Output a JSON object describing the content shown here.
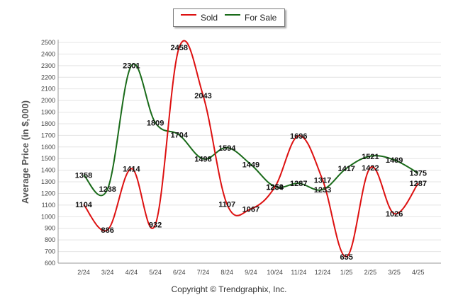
{
  "chart_data": {
    "type": "line",
    "ylabel": "Average Price (in $,000)",
    "ylim": [
      600,
      2500
    ],
    "yticks": [
      600,
      700,
      800,
      900,
      1000,
      1100,
      1200,
      1300,
      1400,
      1500,
      1600,
      1700,
      1800,
      1900,
      2000,
      2100,
      2200,
      2300,
      2400,
      2500
    ],
    "categories": [
      "2/24",
      "3/24",
      "4/24",
      "5/24",
      "6/24",
      "7/24",
      "8/24",
      "9/24",
      "10/24",
      "11/24",
      "12/24",
      "1/25",
      "2/25",
      "3/25",
      "4/25"
    ],
    "legend_position": "top-center",
    "grid": true,
    "series": [
      {
        "name": "Sold",
        "color": "#dd1111",
        "values": [
          1104,
          886,
          1414,
          932,
          2458,
          2043,
          1107,
          1067,
          1254,
          1696,
          1317,
          655,
          1422,
          1026,
          1287
        ]
      },
      {
        "name": "For Sale",
        "color": "#1a6b1a",
        "values": [
          1358,
          1238,
          2301,
          1809,
          1704,
          1498,
          1594,
          1449,
          1259,
          1287,
          1233,
          1417,
          1521,
          1489,
          1375
        ]
      }
    ]
  },
  "legend": {
    "sold_label": "Sold",
    "for_sale_label": "For Sale"
  },
  "footer": {
    "copyright": "Copyright © Trendgraphix, Inc."
  }
}
